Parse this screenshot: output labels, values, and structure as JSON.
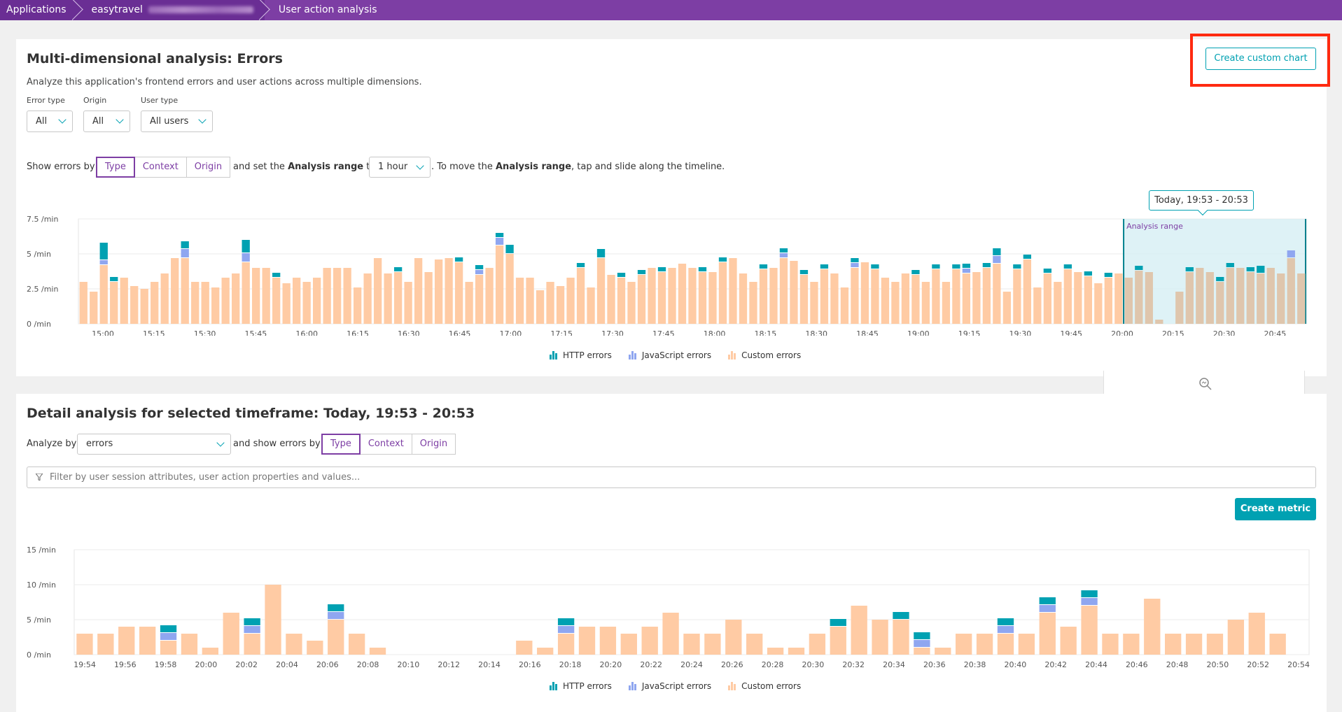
{
  "breadcrumb": {
    "items": [
      "Applications",
      "easytravel",
      "User action analysis"
    ]
  },
  "top": {
    "title": "Multi-dimensional analysis: Errors",
    "description": "Analyze this application's frontend errors and user actions across multiple dimensions.",
    "create_chart_label": "Create custom chart",
    "filters": [
      {
        "label": "Error type",
        "value": "All"
      },
      {
        "label": "Origin",
        "value": "All"
      },
      {
        "label": "User type",
        "value": "All users"
      }
    ],
    "show_errors_by": "Show errors by",
    "toggles": [
      "Type",
      "Context",
      "Origin"
    ],
    "and_set": "and set the",
    "analysis_range_word": "Analysis range",
    "to": "to",
    "range_value": "1 hour",
    "move_text_1": ". To move the",
    "move_text_2": ", tap and slide along the timeline.",
    "tooltip": "Today, 19:53 - 20:53",
    "analysis_range_label": "Analysis range"
  },
  "detail": {
    "title": "Detail analysis for selected timeframe: Today, 19:53 - 20:53",
    "analyze_by": "Analyze by",
    "analyze_value": "errors",
    "and_show": "and show errors by",
    "toggles": [
      "Type",
      "Context",
      "Origin"
    ],
    "filter_placeholder": "Filter by user session attributes, user action properties and values...",
    "create_metric_label": "Create metric"
  },
  "legend": [
    "HTTP errors",
    "JavaScript errors",
    "Custom errors"
  ],
  "colors": {
    "http": "#00a1b2",
    "js": "#8fa6f0",
    "custom": "#ffcba4",
    "range": "#d8f0f4",
    "accent": "#7d3ea4"
  },
  "chart_data": [
    {
      "type": "bar",
      "stacked": true,
      "x_labels": [
        "15:00",
        "15:15",
        "15:30",
        "15:45",
        "16:00",
        "16:15",
        "16:30",
        "16:45",
        "17:00",
        "17:15",
        "17:30",
        "17:45",
        "18:00",
        "18:15",
        "18:30",
        "18:45",
        "19:00",
        "19:15",
        "19:30",
        "19:45",
        "20:00",
        "20:15",
        "20:30",
        "20:45"
      ],
      "y_ticks": [
        "0 /min",
        "2.5 /min",
        "5 /min",
        "7.5 /min"
      ],
      "ylim": [
        0,
        7.5
      ],
      "grid": true,
      "legend_position": "bottom",
      "highlight_range": [
        "19:53",
        "20:53"
      ],
      "series": [
        {
          "name": "Custom errors",
          "values": [
            3.0,
            2.3,
            4.2,
            3.0,
            3.3,
            2.7,
            2.5,
            3.0,
            3.6,
            4.7,
            4.7,
            3.0,
            3.0,
            2.6,
            3.3,
            3.6,
            4.4,
            4.0,
            4.0,
            3.3,
            2.9,
            3.3,
            3.0,
            3.3,
            4.0,
            4.0,
            4.0,
            2.6,
            3.6,
            4.7,
            3.6,
            3.7,
            3.0,
            4.7,
            3.7,
            4.6,
            4.7,
            4.4,
            3.0,
            3.5,
            4.0,
            5.6,
            5.0,
            3.3,
            3.3,
            2.4,
            3.0,
            2.7,
            3.3,
            4.0,
            2.6,
            4.7,
            3.5,
            3.3,
            3.0,
            3.5,
            4.0,
            3.7,
            4.0,
            4.3,
            4.0,
            3.7,
            3.7,
            4.4,
            4.7,
            3.6,
            3.0,
            3.9,
            4.0,
            4.7,
            4.5,
            3.5,
            3.0,
            3.9,
            3.6,
            2.6,
            4.0,
            4.4,
            3.9,
            3.3,
            3.0,
            3.6,
            3.5,
            3.0,
            3.9,
            3.0,
            3.9,
            3.6,
            3.7,
            4.0,
            4.3,
            2.3,
            3.9,
            4.6,
            2.6,
            3.6,
            3.0,
            3.9,
            3.7,
            3.4,
            2.9,
            3.3,
            3.6,
            3.3,
            3.8,
            3.7,
            0.3,
            0.0,
            2.3,
            3.7,
            4.0,
            3.7,
            3.0,
            4.0,
            4.0,
            3.7,
            3.6,
            4.0,
            3.6,
            4.7,
            3.6
          ]
        },
        {
          "name": "JavaScript errors",
          "values": [
            0,
            0,
            0.3,
            0,
            0,
            0,
            0,
            0,
            0,
            0,
            0.6,
            0,
            0,
            0,
            0,
            0,
            0.6,
            0,
            0,
            0,
            0,
            0,
            0,
            0,
            0,
            0,
            0,
            0,
            0,
            0,
            0,
            0,
            0,
            0,
            0,
            0,
            0,
            0,
            0,
            0.3,
            0,
            0.5,
            0,
            0,
            0,
            0,
            0,
            0,
            0,
            0,
            0,
            0,
            0,
            0,
            0,
            0,
            0,
            0,
            0,
            0,
            0,
            0,
            0,
            0,
            0,
            0,
            0,
            0,
            0,
            0.3,
            0,
            0,
            0,
            0,
            0,
            0,
            0.3,
            0,
            0,
            0,
            0,
            0,
            0,
            0,
            0,
            0,
            0,
            0.3,
            0,
            0,
            0.5,
            0,
            0,
            0,
            0,
            0,
            0,
            0,
            0,
            0,
            0,
            0,
            0,
            0,
            0,
            0,
            0,
            0,
            0,
            0,
            0,
            0,
            0,
            0,
            0,
            0,
            0,
            0,
            0,
            0.5,
            0
          ]
        },
        {
          "name": "HTTP errors",
          "values": [
            0,
            0,
            1.2,
            0.3,
            0,
            0,
            0,
            0,
            0,
            0,
            0.5,
            0,
            0,
            0,
            0,
            0,
            0.9,
            0,
            0,
            0.3,
            0,
            0,
            0,
            0,
            0,
            0,
            0,
            0,
            0,
            0,
            0,
            0.3,
            0,
            0,
            0,
            0,
            0,
            0.3,
            0,
            0.3,
            0,
            0.3,
            0.6,
            0,
            0,
            0,
            0,
            0,
            0,
            0.3,
            0,
            0.6,
            0,
            0.3,
            0,
            0.3,
            0,
            0.3,
            0,
            0,
            0,
            0.3,
            0,
            0.3,
            0,
            0,
            0,
            0.3,
            0,
            0.3,
            0,
            0.3,
            0,
            0.3,
            0,
            0,
            0.3,
            0,
            0.3,
            0,
            0,
            0,
            0.3,
            0,
            0.3,
            0,
            0.3,
            0.3,
            0,
            0.3,
            0.5,
            0,
            0.3,
            0.3,
            0,
            0.3,
            0,
            0.3,
            0,
            0.3,
            0,
            0.3,
            0,
            0,
            0.3,
            0,
            0,
            0,
            0,
            0.3,
            0,
            0,
            0.3,
            0.3,
            0,
            0.3,
            0.5,
            0,
            0
          ]
        }
      ]
    },
    {
      "type": "bar",
      "stacked": true,
      "x_labels": [
        "19:54",
        "19:56",
        "19:58",
        "20:00",
        "20:02",
        "20:04",
        "20:06",
        "20:08",
        "20:10",
        "20:12",
        "20:14",
        "20:16",
        "20:18",
        "20:20",
        "20:22",
        "20:24",
        "20:26",
        "20:28",
        "20:30",
        "20:32",
        "20:34",
        "20:36",
        "20:38",
        "20:40",
        "20:42",
        "20:44",
        "20:46",
        "20:48",
        "20:50",
        "20:52",
        "20:54"
      ],
      "y_ticks": [
        "0 /min",
        "5 /min",
        "10 /min",
        "15 /min"
      ],
      "ylim": [
        0,
        15
      ],
      "grid": true,
      "legend_position": "bottom",
      "series": [
        {
          "name": "Custom errors",
          "values": [
            3,
            3,
            4,
            4,
            2,
            3,
            1,
            6,
            3,
            10,
            3,
            2,
            5,
            3,
            1,
            0,
            0,
            0,
            0,
            0,
            0,
            2,
            1,
            3,
            4,
            4,
            3,
            4,
            6,
            3,
            3,
            5,
            3,
            1,
            1,
            3,
            4,
            7,
            5,
            5,
            1,
            1,
            3,
            3,
            3,
            3,
            6,
            4,
            7,
            3,
            3,
            8,
            3,
            3,
            3,
            5,
            6,
            3,
            0
          ]
        },
        {
          "name": "JavaScript errors",
          "values": [
            0,
            0,
            0,
            0,
            1,
            0,
            0,
            0,
            1,
            0,
            0,
            0,
            1,
            0,
            0,
            0,
            0,
            0,
            0,
            0,
            0,
            0,
            0,
            1,
            0,
            0,
            0,
            0,
            0,
            0,
            0,
            0,
            0,
            0,
            0,
            0,
            0,
            0,
            0,
            0,
            1,
            0,
            0,
            0,
            1,
            0,
            1,
            0,
            1,
            0,
            0,
            0,
            0,
            0,
            0,
            0,
            0,
            0,
            0
          ]
        },
        {
          "name": "HTTP errors",
          "values": [
            0,
            0,
            0,
            0,
            1,
            0,
            0,
            0,
            1,
            0,
            0,
            0,
            1,
            0,
            0,
            0,
            0,
            0,
            0,
            0,
            0,
            0,
            0,
            1,
            0,
            0,
            0,
            0,
            0,
            0,
            0,
            0,
            0,
            0,
            0,
            0,
            1,
            0,
            0,
            1,
            1,
            0,
            0,
            0,
            1,
            0,
            1,
            0,
            1,
            0,
            0,
            0,
            0,
            0,
            0,
            0,
            0,
            0,
            0
          ]
        }
      ]
    }
  ]
}
